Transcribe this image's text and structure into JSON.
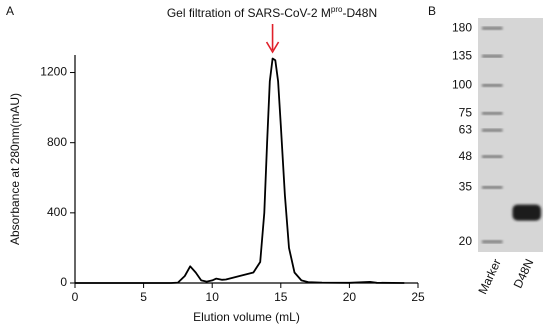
{
  "chart_data": [
    {
      "type": "line",
      "panel": "A",
      "title": [
        "Gel filtration of SARS-CoV-2 M",
        "pro",
        "-D48N"
      ],
      "xlabel": "Elution volume (mL)",
      "ylabel": "Absorbance at 280nm(mAU)",
      "x": [
        0,
        7,
        7.5,
        8,
        8.4,
        8.8,
        9.2,
        9.6,
        10,
        10.3,
        10.7,
        11,
        11.5,
        12,
        12.5,
        13,
        13.5,
        13.8,
        14,
        14.2,
        14.4,
        14.6,
        14.8,
        15,
        15.3,
        15.6,
        16,
        16.5,
        17,
        18,
        20,
        21.5,
        22,
        24
      ],
      "values": [
        0,
        0,
        2,
        40,
        95,
        60,
        15,
        8,
        15,
        25,
        18,
        20,
        30,
        40,
        50,
        60,
        120,
        400,
        800,
        1150,
        1280,
        1270,
        1150,
        900,
        500,
        200,
        60,
        15,
        5,
        2,
        1,
        6,
        1,
        0
      ],
      "color": "#000000",
      "annotation_color": "#e0202a",
      "xlim": [
        0,
        25
      ],
      "xticks": [
        0,
        5,
        10,
        15,
        20,
        25
      ],
      "ylim": [
        0,
        1300
      ],
      "yticks": [
        0,
        400,
        800,
        1200
      ]
    },
    {
      "type": "gel",
      "panel": "B",
      "categories": [
        "Marker",
        "D48N"
      ],
      "values": [
        null,
        27
      ],
      "log_scale": true,
      "ylim": [
        18,
        200
      ],
      "yticks": [
        180,
        135,
        100,
        75,
        63,
        48,
        35,
        20
      ]
    }
  ]
}
